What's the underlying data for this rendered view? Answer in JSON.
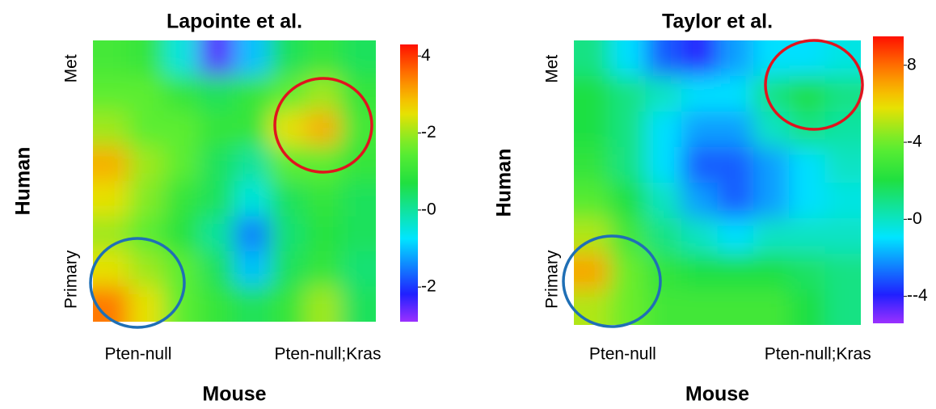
{
  "chart_data": [
    {
      "type": "heatmap",
      "title": "Lapointe et al.",
      "x_label": "Mouse",
      "y_label": "Human",
      "x": [
        "Pten-null",
        "Pten-null;Kras"
      ],
      "y": [
        "Primary",
        "Met"
      ],
      "colormap": "rainbow",
      "z": [
        [
          1.2,
          1.0,
          -0.5,
          -2.5,
          -1.0,
          0.5,
          1.0,
          0.5
        ],
        [
          1.5,
          1.5,
          1.0,
          0.5,
          1.0,
          1.5,
          2.0,
          1.0
        ],
        [
          2.0,
          1.5,
          1.5,
          1.0,
          1.0,
          2.5,
          3.0,
          1.2
        ],
        [
          3.0,
          2.0,
          1.5,
          0.5,
          0,
          1.5,
          1.5,
          1.0
        ],
        [
          2.5,
          1.8,
          1.0,
          0.5,
          -0.5,
          0.5,
          1.0,
          0.5
        ],
        [
          2.0,
          1.5,
          0.8,
          0,
          -1.5,
          0.3,
          0.8,
          0.5
        ],
        [
          2.5,
          2.0,
          1.5,
          0.5,
          -1.0,
          0.5,
          1.0,
          0.3
        ],
        [
          3.5,
          2.5,
          1.5,
          1.0,
          0.5,
          1.0,
          2.0,
          0.5
        ]
      ],
      "zlim": [
        -2.9,
        4.3
      ],
      "zticks": [
        4,
        {
          "value": 2,
          "label": "-2"
        },
        {
          "value": 0,
          "label": "-0"
        },
        {
          "value": -2,
          "label": "-2"
        }
      ]
    },
    {
      "type": "heatmap",
      "title": "Taylor et al.",
      "x_label": "Mouse",
      "y_label": "Human",
      "x": [
        "Pten-null",
        "Pten-null;Kras"
      ],
      "y": [
        "Primary",
        "Met"
      ],
      "colormap": "rainbow",
      "z": [
        [
          1,
          -1,
          -3,
          -4,
          -2,
          -1,
          -1,
          -0.5
        ],
        [
          2,
          1,
          0,
          -1,
          -1,
          1,
          2,
          1
        ],
        [
          2,
          1,
          -1,
          -2,
          -2,
          0,
          1,
          0.5
        ],
        [
          2.5,
          1,
          -1,
          -3,
          -3,
          -2,
          -1,
          0
        ],
        [
          3.5,
          2,
          0,
          -2,
          -3,
          -2,
          -1,
          -0.5
        ],
        [
          5,
          3,
          1,
          0,
          -1,
          0,
          0,
          0
        ],
        [
          7,
          4,
          2.5,
          2,
          2,
          2,
          1.5,
          1
        ],
        [
          5,
          4,
          3,
          3,
          3,
          3,
          2,
          1
        ]
      ],
      "zlim": [
        -5.4,
        9.5
      ],
      "zticks": [
        8,
        {
          "value": 4,
          "label": "-4"
        },
        {
          "value": 0,
          "label": "-0"
        },
        {
          "value": -4,
          "label": "--4"
        }
      ]
    }
  ]
}
